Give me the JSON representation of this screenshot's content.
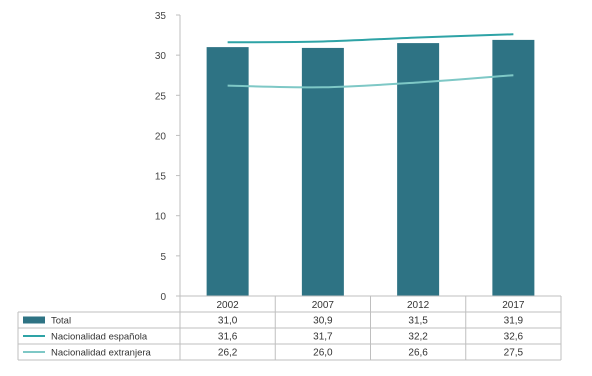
{
  "chart_data": {
    "type": "bar",
    "categories": [
      "2002",
      "2007",
      "2012",
      "2017"
    ],
    "ylim": [
      0,
      35
    ],
    "yticks": [
      "35",
      "30",
      "25",
      "20",
      "15",
      "10",
      "5",
      "0"
    ],
    "grid": false,
    "legend": "data-table-left",
    "series": [
      {
        "name": "Total",
        "kind": "bar",
        "color": "#2e7384",
        "values": [
          31.0,
          30.9,
          31.5,
          31.9
        ],
        "labels": [
          "31,0",
          "30,9",
          "31,5",
          "31,9"
        ]
      },
      {
        "name": "Nacionalidad española",
        "kind": "line",
        "color": "#2ea3a6",
        "values": [
          31.6,
          31.7,
          32.2,
          32.6
        ],
        "labels": [
          "31,6",
          "31,7",
          "32,2",
          "32,6"
        ]
      },
      {
        "name": "Nacionalidad extranjera",
        "kind": "line",
        "color": "#7ec8c6",
        "values": [
          26.2,
          26.0,
          26.6,
          27.5
        ],
        "labels": [
          "26,2",
          "26,0",
          "26,6",
          "27,5"
        ]
      }
    ]
  }
}
